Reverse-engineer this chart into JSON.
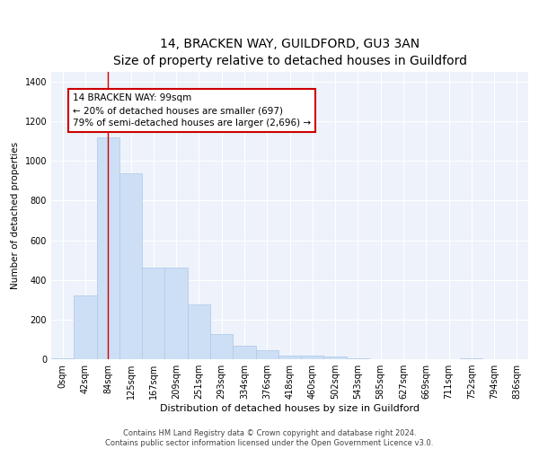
{
  "title": "14, BRACKEN WAY, GUILDFORD, GU3 3AN",
  "subtitle": "Size of property relative to detached houses in Guildford",
  "xlabel": "Distribution of detached houses by size in Guildford",
  "ylabel": "Number of detached properties",
  "categories": [
    "0sqm",
    "42sqm",
    "84sqm",
    "125sqm",
    "167sqm",
    "209sqm",
    "251sqm",
    "293sqm",
    "334sqm",
    "376sqm",
    "418sqm",
    "460sqm",
    "502sqm",
    "543sqm",
    "585sqm",
    "627sqm",
    "669sqm",
    "711sqm",
    "752sqm",
    "794sqm",
    "836sqm"
  ],
  "values": [
    5,
    320,
    1120,
    940,
    460,
    460,
    275,
    125,
    70,
    45,
    20,
    20,
    15,
    5,
    0,
    0,
    0,
    0,
    3,
    0,
    0
  ],
  "bar_color": "#ccdff5",
  "bar_edge_color": "#aec8e8",
  "vline_x_index": 2,
  "vline_color": "#cc0000",
  "annotation_text": "14 BRACKEN WAY: 99sqm\n← 20% of detached houses are smaller (697)\n79% of semi-detached houses are larger (2,696) →",
  "annotation_box_color": "#cc0000",
  "ylim": [
    0,
    1450
  ],
  "yticks": [
    0,
    200,
    400,
    600,
    800,
    1000,
    1200,
    1400
  ],
  "background_color": "#eef2fa",
  "grid_color": "#ffffff",
  "footer_text": "Contains HM Land Registry data © Crown copyright and database right 2024.\nContains public sector information licensed under the Open Government Licence v3.0.",
  "title_fontsize": 10,
  "subtitle_fontsize": 9,
  "xlabel_fontsize": 8,
  "ylabel_fontsize": 7.5,
  "tick_fontsize": 7,
  "annotation_fontsize": 7.5,
  "footer_fontsize": 6
}
